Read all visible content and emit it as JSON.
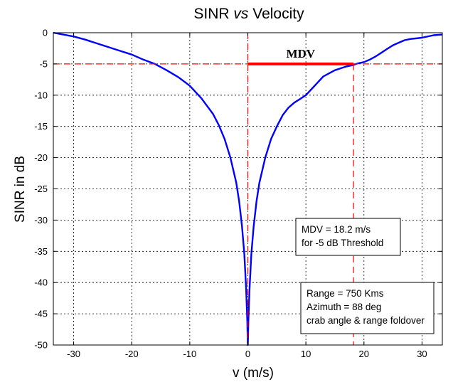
{
  "chart_data": {
    "type": "line",
    "title_prefix": "SINR ",
    "title_vs": "vs",
    "title_suffix": " Velocity",
    "xlabel": "v (m/s)",
    "ylabel": "SINR in dB",
    "xlim": [
      -33.5,
      33.5
    ],
    "ylim": [
      -50,
      0
    ],
    "xticks": [
      -30,
      -20,
      -10,
      0,
      10,
      20,
      30
    ],
    "yticks": [
      0,
      -5,
      -10,
      -15,
      -20,
      -25,
      -30,
      -35,
      -40,
      -45,
      -50
    ],
    "grid": true,
    "series": [
      {
        "color": "#0000ff",
        "x": [
          -33.5,
          -30,
          -28,
          -25,
          -22,
          -20,
          -18,
          -16,
          -14,
          -12,
          -10,
          -8,
          -6,
          -5,
          -4,
          -3,
          -2,
          -1.5,
          -1,
          -0.6,
          -0.3,
          -0.1,
          0,
          0.1,
          0.3,
          0.6,
          1,
          1.5,
          2,
          3,
          4,
          5,
          6,
          7,
          8,
          9,
          10,
          11,
          12,
          13,
          14,
          15,
          16,
          17,
          18,
          19,
          20,
          21,
          22,
          23,
          24,
          25,
          26,
          27,
          28,
          30,
          32,
          33.5
        ],
        "y": [
          0,
          -0.6,
          -1.1,
          -2.0,
          -2.9,
          -3.5,
          -4.3,
          -5.0,
          -6.0,
          -7.1,
          -8.5,
          -10.5,
          -13.0,
          -14.8,
          -17.0,
          -20.0,
          -24.0,
          -27.0,
          -31.0,
          -35.5,
          -41.0,
          -46.0,
          -50.0,
          -46.0,
          -41.0,
          -35.5,
          -31.0,
          -27.0,
          -24.0,
          -20.0,
          -17.0,
          -15.0,
          -13.2,
          -12.0,
          -11.2,
          -10.6,
          -10.0,
          -9.0,
          -8.0,
          -7.0,
          -6.5,
          -6.0,
          -5.7,
          -5.4,
          -5.2,
          -4.9,
          -4.7,
          -4.3,
          -3.8,
          -3.2,
          -2.6,
          -2.0,
          -1.6,
          -1.2,
          -1.0,
          -0.8,
          -0.4,
          -0.3
        ]
      }
    ],
    "threshold_db": -5,
    "mdv_velocity": 18.2,
    "mdv_label": "MDV",
    "threshold_color": "#ff0000",
    "annotations": [
      {
        "lines": [
          "MDV = 18.2 m/s",
          "for -5 dB Threshold"
        ]
      },
      {
        "lines": [
          "Range = 750 Kms",
          "Azimuth = 88 deg",
          "crab angle & range foldover"
        ]
      }
    ]
  }
}
